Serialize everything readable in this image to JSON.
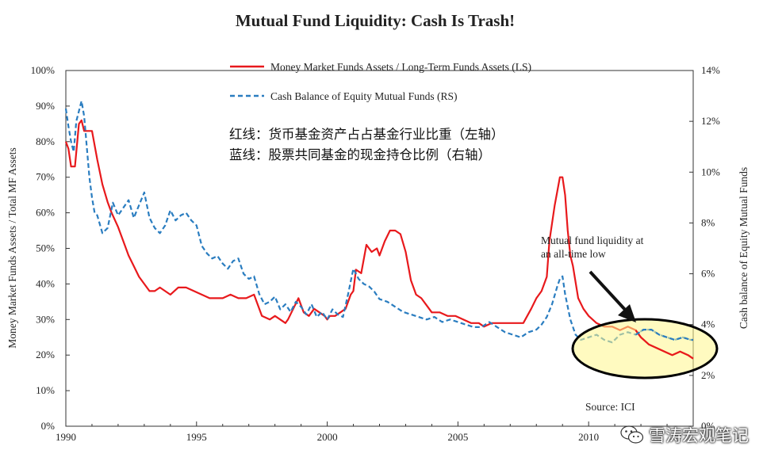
{
  "chart_data": {
    "type": "line",
    "title": "Mutual Fund Liquidity: Cash Is Trash!",
    "xlabel": "",
    "ylabel_left": "Money Market Funds Assets / Total MF Assets",
    "ylabel_right": "Cash balance of Equity Mutual Funds",
    "xlim": [
      1990,
      2014
    ],
    "ylim_left": [
      0,
      100
    ],
    "ylim_right": [
      0,
      14
    ],
    "x_ticks": [
      "1990",
      "1995",
      "2000",
      "2005",
      "2010"
    ],
    "y_ticks_left": [
      "0%",
      "10%",
      "20%",
      "30%",
      "40%",
      "50%",
      "60%",
      "70%",
      "80%",
      "90%",
      "100%"
    ],
    "y_ticks_right": [
      "0%",
      "2%",
      "4%",
      "6%",
      "8%",
      "10%",
      "12%",
      "14%"
    ],
    "legend_position": "top-center",
    "series": [
      {
        "name": "Money Market Funds Assets / Long-Term Funds Assets (LS)",
        "axis": "left",
        "color": "#e8191c",
        "style": "solid",
        "x": [
          1990.0,
          1990.1,
          1990.2,
          1990.35,
          1990.5,
          1990.6,
          1990.7,
          1990.8,
          1991.0,
          1991.2,
          1991.4,
          1991.6,
          1991.75,
          1992.0,
          1992.2,
          1992.4,
          1992.6,
          1992.8,
          1993.0,
          1993.2,
          1993.4,
          1993.6,
          1993.8,
          1994.0,
          1994.3,
          1994.6,
          1994.9,
          1995.2,
          1995.5,
          1995.8,
          1996.0,
          1996.3,
          1996.6,
          1996.9,
          1997.2,
          1997.5,
          1997.8,
          1998.0,
          1998.2,
          1998.4,
          1998.5,
          1998.7,
          1998.9,
          1999.1,
          1999.3,
          1999.5,
          1999.7,
          1999.9,
          2000.0,
          2000.1,
          2000.3,
          2000.5,
          2000.7,
          2000.9,
          2001.0,
          2001.1,
          2001.3,
          2001.5,
          2001.7,
          2001.9,
          2002.0,
          2002.2,
          2002.4,
          2002.6,
          2002.8,
          2003.0,
          2003.2,
          2003.4,
          2003.6,
          2003.8,
          2004.0,
          2004.3,
          2004.6,
          2004.9,
          2005.2,
          2005.5,
          2005.8,
          2006.0,
          2006.3,
          2006.6,
          2006.9,
          2007.2,
          2007.5,
          2007.8,
          2008.0,
          2008.2,
          2008.4,
          2008.5,
          2008.7,
          2008.8,
          2008.9,
          2009.0,
          2009.1,
          2009.2,
          2009.3,
          2009.4,
          2009.6,
          2009.8,
          2010.0,
          2010.3,
          2010.6,
          2010.9,
          2011.2,
          2011.5,
          2011.8,
          2012.0,
          2012.3,
          2012.6,
          2012.9,
          2013.2,
          2013.5,
          2013.8,
          2014.0
        ],
        "values": [
          80,
          78,
          73,
          73,
          85,
          86,
          83,
          83,
          83,
          75,
          68,
          63,
          60,
          56,
          52,
          48,
          45,
          42,
          40,
          38,
          38,
          39,
          38,
          37,
          39,
          39,
          38,
          37,
          36,
          36,
          36,
          37,
          36,
          36,
          37,
          31,
          30,
          31,
          30,
          29,
          30,
          33,
          36,
          32,
          31,
          33,
          32,
          31,
          30,
          31,
          31,
          32,
          33,
          37,
          38,
          44,
          43,
          51,
          49,
          50,
          48,
          52,
          55,
          55,
          54,
          49,
          41,
          37,
          36,
          34,
          32,
          32,
          31,
          31,
          30,
          29,
          29,
          28,
          29,
          29,
          29,
          29,
          29,
          33,
          36,
          38,
          42,
          52,
          62,
          66,
          70,
          70,
          65,
          55,
          48,
          45,
          36,
          33,
          31,
          29,
          28,
          28,
          27,
          28,
          27,
          25,
          23,
          22,
          21,
          20,
          21,
          20,
          19
        ]
      },
      {
        "name": "Cash Balance of Equity Mutual Funds (RS)",
        "axis": "right",
        "color": "#2a7dc0",
        "style": "dashed",
        "x": [
          1990.0,
          1990.1,
          1990.2,
          1990.3,
          1990.4,
          1990.5,
          1990.6,
          1990.7,
          1990.8,
          1990.9,
          1991.0,
          1991.1,
          1991.2,
          1991.4,
          1991.6,
          1991.8,
          1992.0,
          1992.2,
          1992.4,
          1992.6,
          1992.8,
          1993.0,
          1993.2,
          1993.4,
          1993.6,
          1993.8,
          1994.0,
          1994.2,
          1994.4,
          1994.6,
          1994.8,
          1995.0,
          1995.2,
          1995.4,
          1995.6,
          1995.8,
          1996.0,
          1996.2,
          1996.4,
          1996.6,
          1996.8,
          1997.0,
          1997.2,
          1997.4,
          1997.6,
          1997.8,
          1998.0,
          1998.2,
          1998.4,
          1998.6,
          1998.8,
          1999.0,
          1999.2,
          1999.4,
          1999.6,
          1999.8,
          2000.0,
          2000.2,
          2000.4,
          2000.6,
          2000.8,
          2001.0,
          2001.2,
          2001.4,
          2001.6,
          2001.8,
          2002.0,
          2002.3,
          2002.6,
          2002.9,
          2003.2,
          2003.5,
          2003.8,
          2004.1,
          2004.4,
          2004.7,
          2005.0,
          2005.3,
          2005.6,
          2005.9,
          2006.2,
          2006.5,
          2006.8,
          2007.1,
          2007.4,
          2007.7,
          2008.0,
          2008.2,
          2008.4,
          2008.6,
          2008.8,
          2008.9,
          2009.0,
          2009.1,
          2009.3,
          2009.5,
          2009.7,
          2010.0,
          2010.3,
          2010.6,
          2010.9,
          2011.2,
          2011.5,
          2011.8,
          2012.1,
          2012.4,
          2012.7,
          2013.0,
          2013.3,
          2013.6,
          2013.9,
          2014.0
        ],
        "values": [
          12.5,
          11.8,
          11.2,
          10.8,
          12.0,
          12.4,
          12.8,
          12.2,
          11.0,
          9.8,
          9.0,
          8.4,
          8.3,
          7.6,
          7.8,
          8.8,
          8.3,
          8.6,
          8.9,
          8.2,
          8.7,
          9.2,
          8.2,
          7.8,
          7.6,
          7.9,
          8.5,
          8.1,
          8.3,
          8.4,
          8.1,
          7.9,
          7.1,
          6.8,
          6.6,
          6.7,
          6.4,
          6.2,
          6.5,
          6.6,
          6.0,
          5.8,
          5.9,
          5.2,
          4.8,
          4.9,
          5.1,
          4.6,
          4.8,
          4.5,
          4.9,
          4.7,
          4.4,
          4.8,
          4.3,
          4.5,
          4.2,
          4.6,
          4.4,
          4.3,
          5.2,
          6.2,
          5.8,
          5.6,
          5.5,
          5.3,
          5.0,
          4.9,
          4.7,
          4.5,
          4.4,
          4.3,
          4.2,
          4.3,
          4.1,
          4.2,
          4.1,
          4.0,
          3.9,
          3.9,
          4.1,
          3.9,
          3.7,
          3.6,
          3.5,
          3.7,
          3.8,
          4.0,
          4.3,
          4.8,
          5.5,
          5.8,
          5.9,
          5.2,
          4.2,
          3.6,
          3.4,
          3.5,
          3.6,
          3.4,
          3.3,
          3.6,
          3.7,
          3.6,
          3.8,
          3.8,
          3.6,
          3.5,
          3.4,
          3.5,
          3.4,
          3.4
        ]
      }
    ],
    "annotations": [
      {
        "text_lines": [
          "Mutual fund liquidity at",
          "an all-time low"
        ],
        "points_to": {
          "x": 2012.5,
          "y_right": 3.3
        }
      },
      {
        "text_lines": [
          "Source: ICI"
        ]
      }
    ]
  },
  "chinese_notes": {
    "red_line": "红线：货币基金资产占占基金行业比重（左轴）",
    "blue_line": "蓝线：股票共同基金的现金持仓比例（右轴）"
  },
  "watermark": {
    "text": "雪涛宏观笔记",
    "icon": "wechat-icon"
  }
}
